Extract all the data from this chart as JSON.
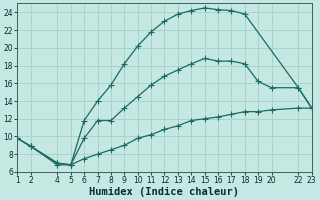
{
  "xlabel": "Humidex (Indice chaleur)",
  "bg_color": "#c5e8e2",
  "grid_color": "#a8d4cc",
  "line_color": "#1a6b62",
  "xlim": [
    1,
    23
  ],
  "ylim": [
    6,
    25
  ],
  "xticks": [
    1,
    2,
    4,
    5,
    6,
    7,
    8,
    9,
    10,
    11,
    12,
    13,
    14,
    15,
    16,
    17,
    18,
    19,
    20,
    22,
    23
  ],
  "xtick_labels": [
    "1",
    "2",
    "4",
    "5",
    "6",
    "7",
    "8",
    "9",
    "10",
    "11",
    "12",
    "13",
    "14",
    "15",
    "16",
    "17",
    "18",
    "19",
    "20",
    "22",
    "23"
  ],
  "yticks": [
    6,
    8,
    10,
    12,
    14,
    16,
    18,
    20,
    22,
    24
  ],
  "line1_x": [
    1,
    2,
    4,
    5,
    6,
    7,
    8,
    9,
    10,
    11,
    12,
    13,
    14,
    15,
    16,
    17,
    18,
    22,
    23
  ],
  "line1_y": [
    9.8,
    8.9,
    7.0,
    6.8,
    11.8,
    14.0,
    15.8,
    18.2,
    20.2,
    21.8,
    23.0,
    23.8,
    24.2,
    24.5,
    24.3,
    24.2,
    23.8,
    15.5,
    13.2
  ],
  "line2_x": [
    1,
    2,
    4,
    5,
    6,
    7,
    8,
    9,
    10,
    11,
    12,
    13,
    14,
    15,
    16,
    17,
    18,
    19,
    20,
    22,
    23
  ],
  "line2_y": [
    9.8,
    8.9,
    7.0,
    6.8,
    9.8,
    11.8,
    11.8,
    13.2,
    14.5,
    15.8,
    16.8,
    17.5,
    18.2,
    18.8,
    18.5,
    18.5,
    18.2,
    16.2,
    15.5,
    15.5,
    13.2
  ],
  "line3_x": [
    1,
    2,
    4,
    5,
    6,
    7,
    8,
    9,
    10,
    11,
    12,
    13,
    14,
    15,
    16,
    17,
    18,
    19,
    20,
    22,
    23
  ],
  "line3_y": [
    9.8,
    8.9,
    6.8,
    6.8,
    7.5,
    8.0,
    8.5,
    9.0,
    9.8,
    10.2,
    10.8,
    11.2,
    11.8,
    12.0,
    12.2,
    12.5,
    12.8,
    12.8,
    13.0,
    13.2,
    13.2
  ],
  "tick_fontsize": 5.5,
  "label_fontsize": 7.5
}
